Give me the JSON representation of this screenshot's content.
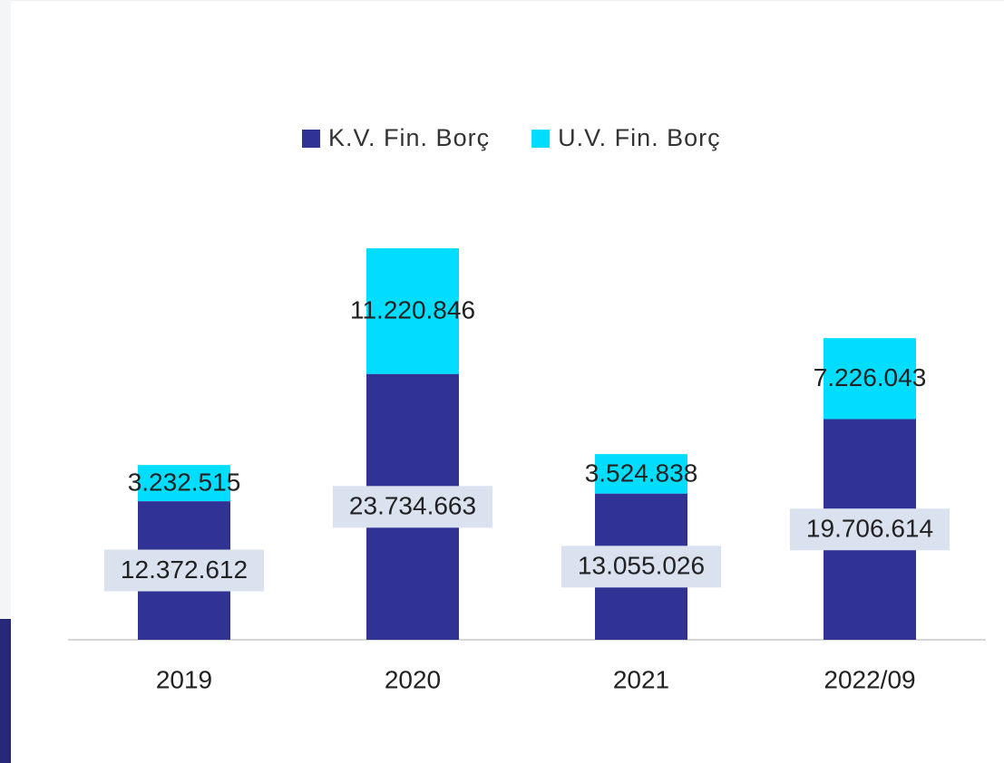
{
  "chart_data": {
    "type": "stacked_bar",
    "categories": [
      "2019",
      "2020",
      "2021",
      "2022/09"
    ],
    "series": [
      {
        "name": "K.V. Fin. Borç",
        "color": "#303393",
        "values": [
          12372612,
          23734663,
          13055026,
          19706614
        ],
        "value_labels": [
          "12.372.612",
          "23.734.663",
          "13.055.026",
          "19.706.614"
        ]
      },
      {
        "name": "U.V. Fin. Borç",
        "color": "#00ddff",
        "values": [
          3232515,
          11220846,
          3524838,
          7226043
        ],
        "value_labels": [
          "3.232.515",
          "11.220.846",
          "3.524.838",
          "7.226.043"
        ]
      }
    ],
    "legend": "top"
  }
}
